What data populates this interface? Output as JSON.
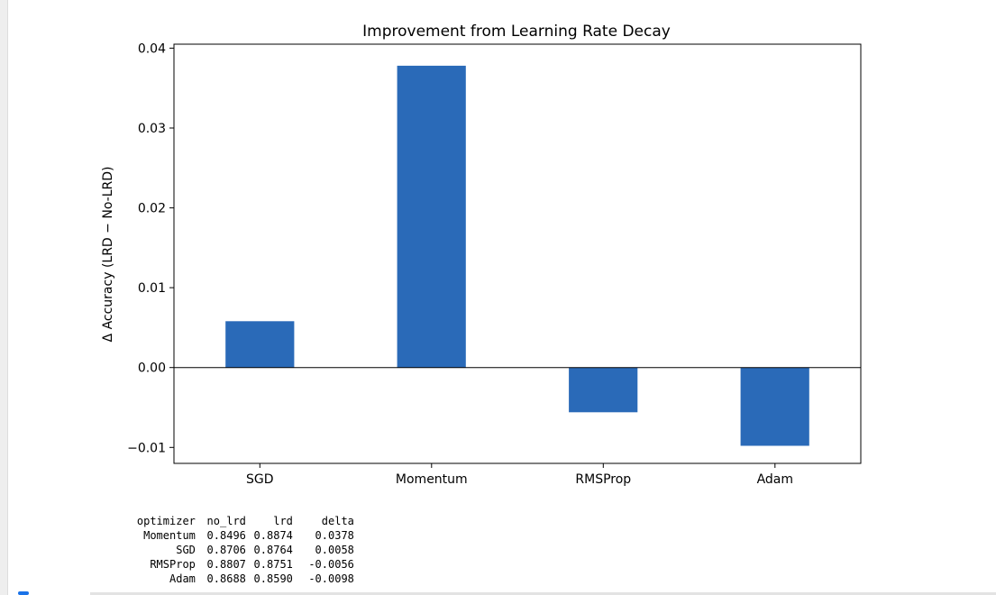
{
  "chart_data": {
    "type": "bar",
    "title": "Improvement from Learning Rate Decay",
    "xlabel": "",
    "ylabel": "Δ Accuracy (LRD − No-LRD)",
    "categories": [
      "SGD",
      "Momentum",
      "RMSProp",
      "Adam"
    ],
    "values": [
      0.0058,
      0.0378,
      -0.0056,
      -0.0098
    ],
    "ylim": [
      -0.012,
      0.0405
    ],
    "yticks": [
      -0.01,
      0.0,
      0.01,
      0.02,
      0.03,
      0.04
    ],
    "ytick_labels": [
      "−0.01",
      "0.00",
      "0.01",
      "0.02",
      "0.03",
      "0.04"
    ],
    "bar_color": "#2a6ab8",
    "grid": false,
    "zero_line": true
  },
  "table": {
    "columns": [
      "optimizer",
      "no_lrd",
      "lrd",
      "delta"
    ],
    "rows": [
      [
        "Momentum",
        "0.8496",
        "0.8874",
        "0.0378"
      ],
      [
        "SGD",
        "0.8706",
        "0.8764",
        "0.0058"
      ],
      [
        "RMSProp",
        "0.8807",
        "0.8751",
        "-0.0056"
      ],
      [
        "Adam",
        "0.8688",
        "0.8590",
        "-0.0098"
      ]
    ]
  }
}
